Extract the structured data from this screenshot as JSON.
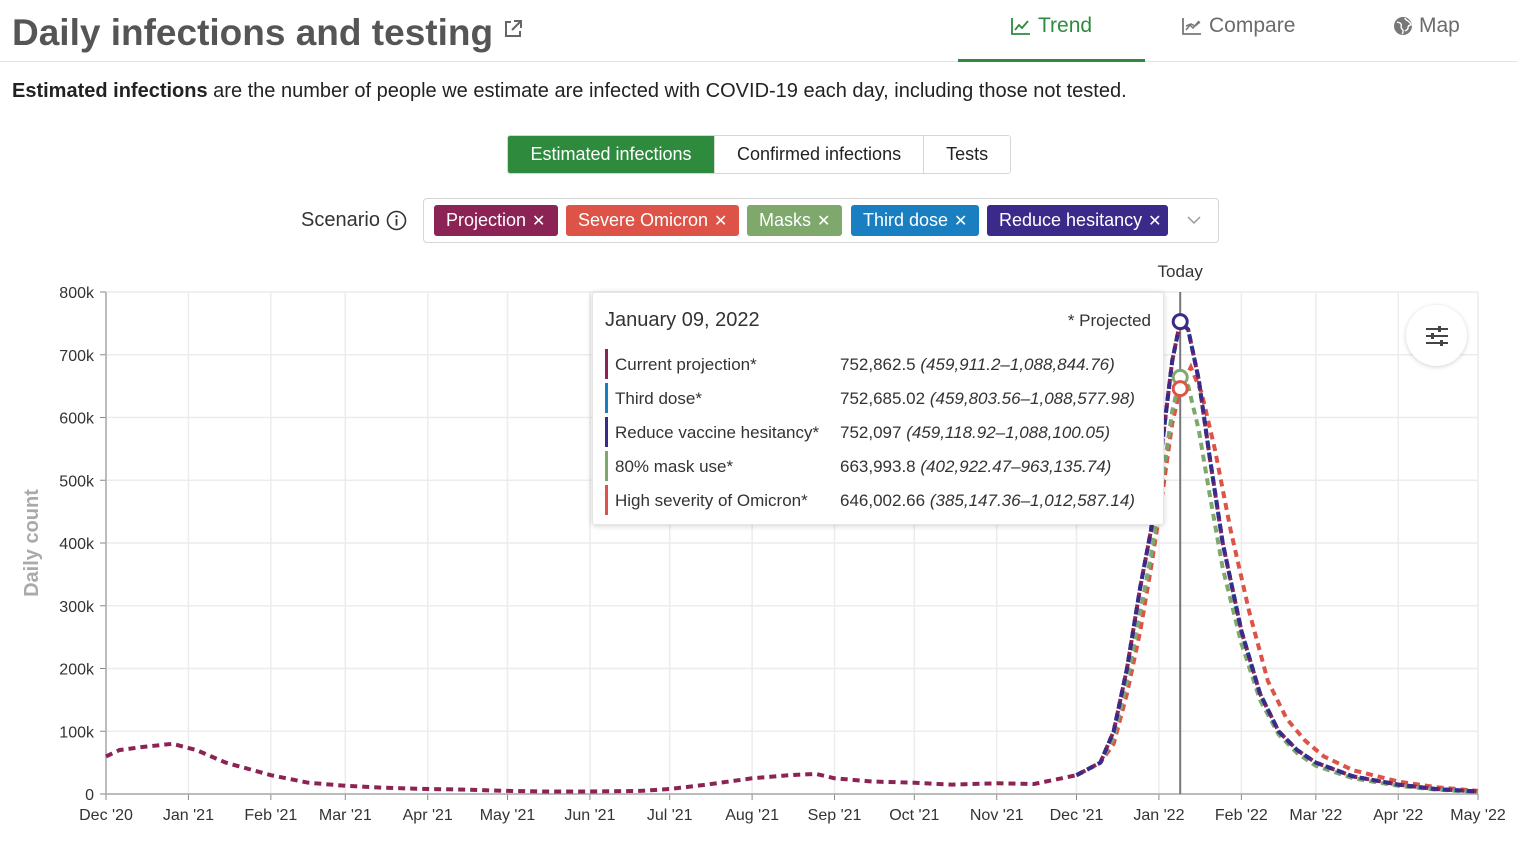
{
  "header": {
    "title": "Daily infections and testing",
    "tabs": [
      {
        "label": "Trend",
        "icon": "line-chart-icon",
        "active": true
      },
      {
        "label": "Compare",
        "icon": "compare-chart-icon",
        "active": false
      },
      {
        "label": "Map",
        "icon": "globe-icon",
        "active": false
      }
    ],
    "accent": "#2e8b3e"
  },
  "description": {
    "bold": "Estimated infections",
    "rest": " are the number of people we estimate are infected with COVID-19 each day, including those not tested."
  },
  "metric_tabs": [
    {
      "label": "Estimated infections",
      "active": true
    },
    {
      "label": "Confirmed infections",
      "active": false
    },
    {
      "label": "Tests",
      "active": false
    }
  ],
  "scenario": {
    "label": "Scenario",
    "chips": [
      {
        "label": "Projection",
        "color": "#8b2455"
      },
      {
        "label": "Severe Omicron",
        "color": "#dd5347"
      },
      {
        "label": "Masks",
        "color": "#7ea86c"
      },
      {
        "label": "Third dose",
        "color": "#1a7fc1"
      },
      {
        "label": "Reduce hesitancy",
        "color": "#3b2a8a"
      }
    ]
  },
  "tooltip": {
    "date": "January 09, 2022",
    "projected_note": "* Projected",
    "rows": [
      {
        "name": "Current projection*",
        "value": "752,862.5",
        "range": "(459,911.2–1,088,844.76)",
        "color": "#8b2455"
      },
      {
        "name": "Third dose*",
        "value": "752,685.02",
        "range": "(459,803.56–1,088,577.98)",
        "color": "#1a7fc1"
      },
      {
        "name": "Reduce vaccine hesitancy*",
        "value": "752,097",
        "range": "(459,118.92–1,088,100.05)",
        "color": "#3b2a8a"
      },
      {
        "name": "80% mask use*",
        "value": "663,993.8",
        "range": "(402,922.47–963,135.74)",
        "color": "#7ea86c"
      },
      {
        "name": "High severity of Omicron*",
        "value": "646,002.66",
        "range": "(385,147.36–1,012,587.14)",
        "color": "#dd5347"
      }
    ]
  },
  "chart_data": {
    "type": "line",
    "ylabel": "Daily count",
    "xlabel": "",
    "ylim": [
      0,
      800000
    ],
    "y_ticks": [
      0,
      100000,
      200000,
      300000,
      400000,
      500000,
      600000,
      700000,
      800000
    ],
    "y_tick_labels": [
      "0",
      "100k",
      "200k",
      "300k",
      "400k",
      "500k",
      "600k",
      "700k",
      "800k"
    ],
    "x_ticks": [
      "2020-12-01",
      "2021-01-01",
      "2021-02-01",
      "2021-03-01",
      "2021-04-01",
      "2021-05-01",
      "2021-06-01",
      "2021-07-01",
      "2021-08-01",
      "2021-09-01",
      "2021-10-01",
      "2021-11-01",
      "2021-12-01",
      "2022-01-01",
      "2022-02-01",
      "2022-03-01",
      "2022-04-01",
      "2022-05-01"
    ],
    "x_tick_labels": [
      "Dec '20",
      "Jan '21",
      "Feb '21",
      "Mar '21",
      "Apr '21",
      "May '21",
      "Jun '21",
      "Jul '21",
      "Aug '21",
      "Sep '21",
      "Oct '21",
      "Nov '21",
      "Dec '21",
      "Jan '22",
      "Feb '22",
      "Mar '22",
      "Apr '22",
      "May '22"
    ],
    "xlim": [
      "2020-12-01",
      "2022-05-01"
    ],
    "today": {
      "label": "Today",
      "date": "2022-01-09"
    },
    "grid": true,
    "series": [
      {
        "name": "Current projection",
        "color": "#8b2455",
        "points": [
          [
            "2020-12-01",
            60000
          ],
          [
            "2020-12-06",
            70000
          ],
          [
            "2020-12-15",
            75000
          ],
          [
            "2020-12-26",
            80000
          ],
          [
            "2021-01-04",
            70000
          ],
          [
            "2021-01-15",
            50000
          ],
          [
            "2021-02-01",
            30000
          ],
          [
            "2021-02-15",
            18000
          ],
          [
            "2021-03-01",
            13000
          ],
          [
            "2021-03-15",
            10000
          ],
          [
            "2021-04-01",
            8000
          ],
          [
            "2021-04-15",
            7000
          ],
          [
            "2021-05-01",
            5000
          ],
          [
            "2021-05-15",
            4000
          ],
          [
            "2021-06-01",
            4000
          ],
          [
            "2021-06-20",
            5000
          ],
          [
            "2021-07-01",
            8000
          ],
          [
            "2021-07-15",
            15000
          ],
          [
            "2021-08-01",
            25000
          ],
          [
            "2021-08-15",
            30000
          ],
          [
            "2021-08-25",
            32000
          ],
          [
            "2021-09-01",
            25000
          ],
          [
            "2021-09-15",
            20000
          ],
          [
            "2021-10-01",
            18000
          ],
          [
            "2021-10-15",
            15000
          ],
          [
            "2021-11-01",
            17000
          ],
          [
            "2021-11-15",
            16000
          ],
          [
            "2021-12-01",
            30000
          ],
          [
            "2021-12-10",
            50000
          ],
          [
            "2021-12-15",
            100000
          ],
          [
            "2021-12-20",
            200000
          ],
          [
            "2021-12-25",
            330000
          ],
          [
            "2021-12-29",
            420000
          ],
          [
            "2022-01-02",
            550000
          ],
          [
            "2022-01-06",
            690000
          ],
          [
            "2022-01-09",
            752862
          ],
          [
            "2022-01-12",
            740000
          ],
          [
            "2022-01-16",
            660000
          ],
          [
            "2022-01-20",
            540000
          ],
          [
            "2022-01-25",
            400000
          ],
          [
            "2022-02-01",
            260000
          ],
          [
            "2022-02-08",
            160000
          ],
          [
            "2022-02-15",
            100000
          ],
          [
            "2022-02-22",
            70000
          ],
          [
            "2022-03-01",
            50000
          ],
          [
            "2022-03-15",
            28000
          ],
          [
            "2022-04-01",
            15000
          ],
          [
            "2022-04-15",
            8000
          ],
          [
            "2022-05-01",
            4000
          ]
        ]
      },
      {
        "name": "Third dose",
        "color": "#1a7fc1",
        "points": [
          [
            "2021-12-01",
            30000
          ],
          [
            "2021-12-10",
            50000
          ],
          [
            "2021-12-15",
            100000
          ],
          [
            "2021-12-20",
            200000
          ],
          [
            "2021-12-25",
            330000
          ],
          [
            "2021-12-29",
            420000
          ],
          [
            "2022-01-02",
            550000
          ],
          [
            "2022-01-06",
            690000
          ],
          [
            "2022-01-09",
            752685
          ],
          [
            "2022-01-12",
            740000
          ],
          [
            "2022-01-16",
            660000
          ],
          [
            "2022-01-20",
            540000
          ],
          [
            "2022-01-25",
            400000
          ],
          [
            "2022-02-01",
            260000
          ],
          [
            "2022-02-08",
            160000
          ],
          [
            "2022-02-15",
            100000
          ],
          [
            "2022-02-22",
            70000
          ],
          [
            "2022-03-01",
            50000
          ],
          [
            "2022-03-15",
            28000
          ],
          [
            "2022-04-01",
            15000
          ],
          [
            "2022-04-15",
            8000
          ],
          [
            "2022-05-01",
            4000
          ]
        ]
      },
      {
        "name": "Reduce vaccine hesitancy",
        "color": "#3b2a8a",
        "points": [
          [
            "2021-12-01",
            30000
          ],
          [
            "2021-12-10",
            50000
          ],
          [
            "2021-12-15",
            100000
          ],
          [
            "2021-12-20",
            200000
          ],
          [
            "2021-12-25",
            330000
          ],
          [
            "2021-12-29",
            420000
          ],
          [
            "2022-01-02",
            550000
          ],
          [
            "2022-01-06",
            690000
          ],
          [
            "2022-01-09",
            752097
          ],
          [
            "2022-01-12",
            740000
          ],
          [
            "2022-01-16",
            660000
          ],
          [
            "2022-01-20",
            540000
          ],
          [
            "2022-01-25",
            400000
          ],
          [
            "2022-02-01",
            260000
          ],
          [
            "2022-02-08",
            160000
          ],
          [
            "2022-02-15",
            100000
          ],
          [
            "2022-02-22",
            70000
          ],
          [
            "2022-03-01",
            50000
          ],
          [
            "2022-03-15",
            28000
          ],
          [
            "2022-04-01",
            15000
          ],
          [
            "2022-04-15",
            8000
          ],
          [
            "2022-05-01",
            4000
          ]
        ]
      },
      {
        "name": "80% mask use",
        "color": "#7ea86c",
        "points": [
          [
            "2021-12-01",
            30000
          ],
          [
            "2021-12-10",
            50000
          ],
          [
            "2021-12-15",
            90000
          ],
          [
            "2021-12-20",
            180000
          ],
          [
            "2021-12-25",
            290000
          ],
          [
            "2021-12-29",
            380000
          ],
          [
            "2022-01-02",
            490000
          ],
          [
            "2022-01-06",
            610000
          ],
          [
            "2022-01-09",
            663994
          ],
          [
            "2022-01-12",
            650000
          ],
          [
            "2022-01-16",
            580000
          ],
          [
            "2022-01-20",
            480000
          ],
          [
            "2022-01-25",
            360000
          ],
          [
            "2022-02-01",
            240000
          ],
          [
            "2022-02-08",
            150000
          ],
          [
            "2022-02-15",
            95000
          ],
          [
            "2022-02-22",
            65000
          ],
          [
            "2022-03-01",
            45000
          ],
          [
            "2022-03-15",
            25000
          ],
          [
            "2022-04-01",
            13000
          ],
          [
            "2022-04-15",
            7000
          ],
          [
            "2022-05-01",
            3000
          ]
        ]
      },
      {
        "name": "High severity of Omicron",
        "color": "#dd5347",
        "points": [
          [
            "2021-12-01",
            30000
          ],
          [
            "2021-12-10",
            50000
          ],
          [
            "2021-12-15",
            80000
          ],
          [
            "2021-12-20",
            160000
          ],
          [
            "2021-12-25",
            260000
          ],
          [
            "2021-12-29",
            360000
          ],
          [
            "2022-01-02",
            470000
          ],
          [
            "2022-01-06",
            590000
          ],
          [
            "2022-01-09",
            646003
          ],
          [
            "2022-01-13",
            680000
          ],
          [
            "2022-01-17",
            640000
          ],
          [
            "2022-01-22",
            550000
          ],
          [
            "2022-01-28",
            420000
          ],
          [
            "2022-02-04",
            290000
          ],
          [
            "2022-02-11",
            180000
          ],
          [
            "2022-02-18",
            120000
          ],
          [
            "2022-02-25",
            85000
          ],
          [
            "2022-03-04",
            60000
          ],
          [
            "2022-03-15",
            38000
          ],
          [
            "2022-04-01",
            20000
          ],
          [
            "2022-04-15",
            11000
          ],
          [
            "2022-05-01",
            5000
          ]
        ]
      }
    ],
    "markers": [
      {
        "date": "2022-01-09",
        "value": 752862,
        "color": "#3b2a8a"
      },
      {
        "date": "2022-01-09",
        "value": 663994,
        "color": "#7ea86c"
      },
      {
        "date": "2022-01-09",
        "value": 646003,
        "color": "#dd5347"
      }
    ]
  }
}
